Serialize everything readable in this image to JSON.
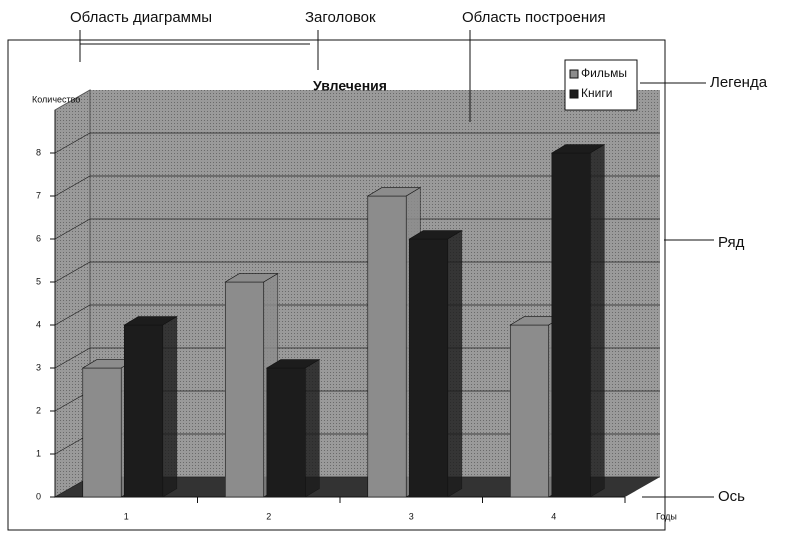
{
  "chart_data": {
    "type": "bar3d",
    "title": "Увлечения",
    "y_label": "Количество",
    "x_label": "Годы",
    "categories": [
      "1",
      "2",
      "3",
      "4"
    ],
    "series": [
      {
        "name": "Фильмы",
        "color": "#8c8c8c",
        "values": [
          3,
          5,
          7,
          4
        ]
      },
      {
        "name": "Книги",
        "color": "#1c1c1c",
        "values": [
          4,
          3,
          6,
          8
        ]
      }
    ],
    "ylim": [
      0,
      9
    ],
    "yticks": [
      0,
      1,
      2,
      3,
      4,
      5,
      6,
      7,
      8
    ],
    "grid": true,
    "legend": "top-right",
    "annotations": [
      "Область диаграммы",
      "Заголовок",
      "Область построения",
      "Легенда",
      "Ряд",
      "Ось"
    ]
  }
}
